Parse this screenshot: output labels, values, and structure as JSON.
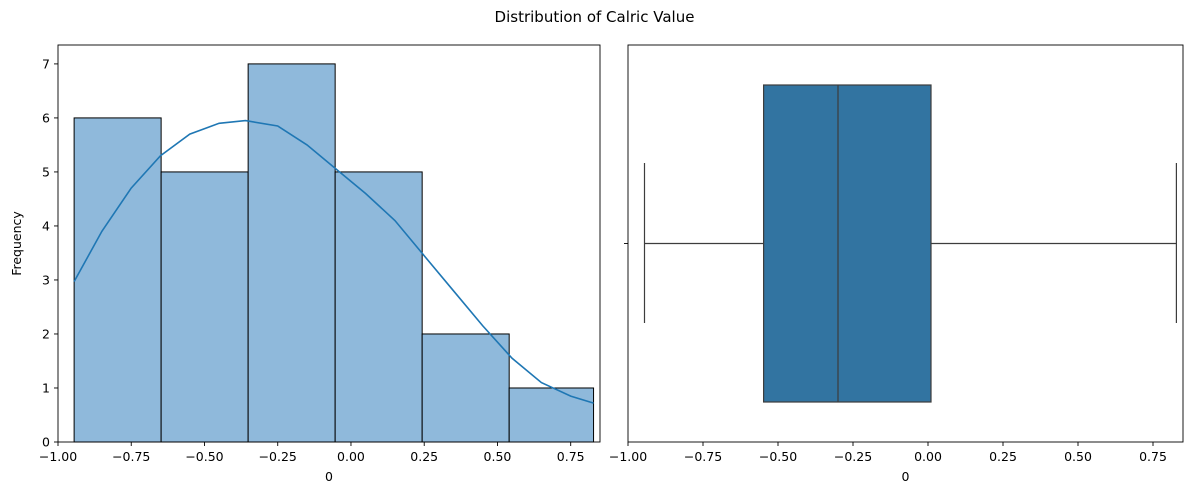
{
  "figure": {
    "title": "Distribution of Calric Value"
  },
  "chart_data": [
    {
      "type": "histogram",
      "xlabel": "0",
      "ylabel": "Frequency",
      "xlim": [
        -1.0,
        0.85
      ],
      "ylim": [
        0,
        7.35
      ],
      "xticks": [
        -1.0,
        -0.75,
        -0.5,
        -0.25,
        0.0,
        0.25,
        0.5,
        0.75
      ],
      "xtick_labels": [
        "−1.00",
        "−0.75",
        "−0.50",
        "−0.25",
        "0.00",
        "0.25",
        "0.50",
        "0.75"
      ],
      "yticks": [
        0,
        1,
        2,
        3,
        4,
        5,
        6,
        7
      ],
      "ytick_labels": [
        "0",
        "1",
        "2",
        "3",
        "4",
        "5",
        "6",
        "7"
      ],
      "bins": [
        {
          "x0": -0.945,
          "x1": -0.648,
          "count": 6
        },
        {
          "x0": -0.648,
          "x1": -0.351,
          "count": 5
        },
        {
          "x0": -0.351,
          "x1": -0.054,
          "count": 7
        },
        {
          "x0": -0.054,
          "x1": 0.243,
          "count": 5
        },
        {
          "x0": 0.243,
          "x1": 0.54,
          "count": 2
        },
        {
          "x0": 0.54,
          "x1": 0.828,
          "count": 1
        }
      ],
      "kde": {
        "x": [
          -0.945,
          -0.85,
          -0.75,
          -0.65,
          -0.55,
          -0.45,
          -0.36,
          -0.25,
          -0.15,
          -0.05,
          0.05,
          0.15,
          0.25,
          0.35,
          0.45,
          0.55,
          0.65,
          0.75,
          0.828
        ],
        "y": [
          2.97,
          3.9,
          4.7,
          5.3,
          5.7,
          5.9,
          5.95,
          5.85,
          5.5,
          5.05,
          4.6,
          4.1,
          3.45,
          2.8,
          2.15,
          1.55,
          1.1,
          0.85,
          0.72
        ]
      },
      "bar_color": "#8fb9db",
      "kde_color": "#1f77b4",
      "grid": false
    },
    {
      "type": "box",
      "xlabel": "0",
      "xlim": [
        -1.0,
        0.85
      ],
      "xticks": [
        -1.0,
        -0.75,
        -0.5,
        -0.25,
        0.0,
        0.25,
        0.5,
        0.75
      ],
      "xtick_labels": [
        "−1.00",
        "−0.75",
        "−0.50",
        "−0.25",
        "0.00",
        "0.25",
        "0.50",
        "0.75"
      ],
      "whisker_low": -0.945,
      "q1": -0.548,
      "median": -0.3,
      "q3": 0.01,
      "whisker_high": 0.828,
      "box_color": "#3274a1",
      "grid": false
    }
  ]
}
